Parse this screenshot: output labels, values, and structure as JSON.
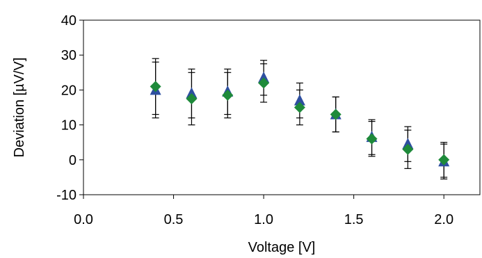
{
  "chart_data": {
    "type": "scatter",
    "title": "",
    "xlabel": "Voltage  [V]",
    "ylabel": "Deviation  [µV/V]",
    "xlim": [
      0,
      2.2
    ],
    "ylim": [
      -10,
      40
    ],
    "x_ticks": [
      0.0,
      0.5,
      1.0,
      1.5,
      2.0
    ],
    "x_tick_labels": [
      "0.0",
      "0.5",
      "1.0",
      "1.5",
      "2.0"
    ],
    "y_ticks": [
      -10,
      0,
      10,
      20,
      30,
      40
    ],
    "y_tick_labels": [
      "-10",
      "0",
      "10",
      "20",
      "30",
      "40"
    ],
    "grid": false,
    "legend": "none",
    "series": [
      {
        "marker": "triangle",
        "color": "#2e4fa0",
        "x": [
          0.4,
          0.6,
          0.8,
          1.0,
          1.2,
          1.4,
          1.6,
          1.8,
          2.0
        ],
        "y": [
          20.0,
          19.0,
          19.5,
          23.5,
          17.0,
          13.0,
          6.5,
          4.5,
          -0.5
        ],
        "err": [
          8.0,
          7.0,
          6.5,
          5.0,
          5.0,
          5.0,
          5.0,
          5.0,
          5.0
        ]
      },
      {
        "marker": "diamond",
        "color": "#1e8a3a",
        "x": [
          0.4,
          0.6,
          0.8,
          1.0,
          1.2,
          1.4,
          1.6,
          1.8,
          2.0
        ],
        "y": [
          21.0,
          17.5,
          18.5,
          22.0,
          15.0,
          13.0,
          6.0,
          3.0,
          0.0
        ],
        "err": [
          8.0,
          7.5,
          6.5,
          5.5,
          5.0,
          5.0,
          5.0,
          5.5,
          5.0
        ]
      }
    ]
  }
}
